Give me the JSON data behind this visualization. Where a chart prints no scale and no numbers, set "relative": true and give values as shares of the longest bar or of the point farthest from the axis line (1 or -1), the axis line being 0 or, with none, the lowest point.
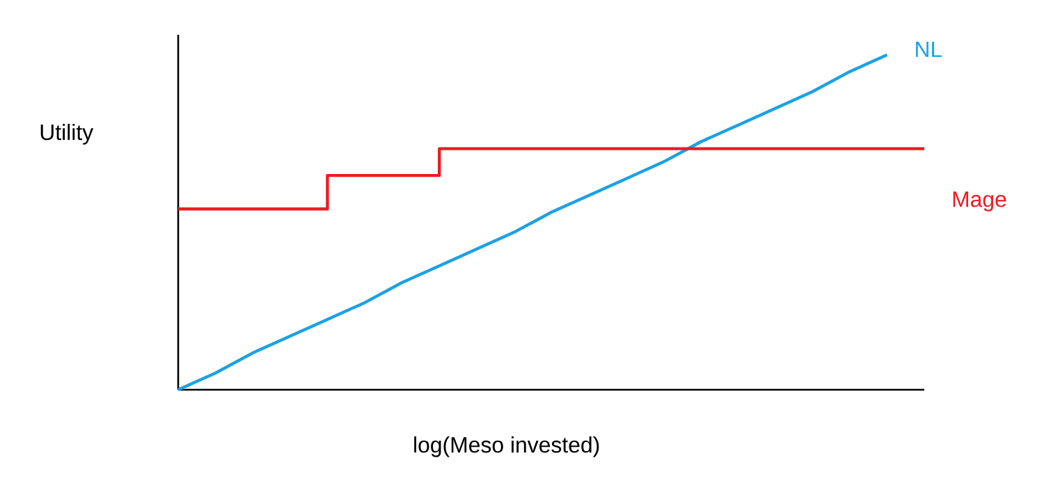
{
  "chart_data": {
    "type": "line",
    "relative": true,
    "xlabel": "log(Meso invested)",
    "ylabel": "Utility",
    "tick_labels": false,
    "categories": [
      null,
      null,
      null,
      null,
      null,
      null,
      null,
      null,
      null,
      null,
      null,
      null,
      null,
      null,
      null,
      null,
      null,
      null,
      null,
      null,
      null
    ],
    "series": [
      {
        "name": "NL",
        "color": "#1ba1e2",
        "values": [
          0,
          0.05,
          0.11,
          0.16,
          0.21,
          0.26,
          0.32,
          0.37,
          0.42,
          0.47,
          0.53,
          0.58,
          0.63,
          0.68,
          0.74,
          0.79,
          0.84,
          0.89,
          0.95,
          1,
          null
        ]
      },
      {
        "name": "Mage",
        "type": "step",
        "color": "#ed1c24",
        "values": [
          0.54,
          0.54,
          0.54,
          0.54,
          0.64,
          0.64,
          0.64,
          0.72,
          0.72,
          0.72,
          0.72,
          0.72,
          0.72,
          0.72,
          0.72,
          0.72,
          0.72,
          0.72,
          0.72,
          0.72,
          0.72
        ]
      }
    ]
  }
}
